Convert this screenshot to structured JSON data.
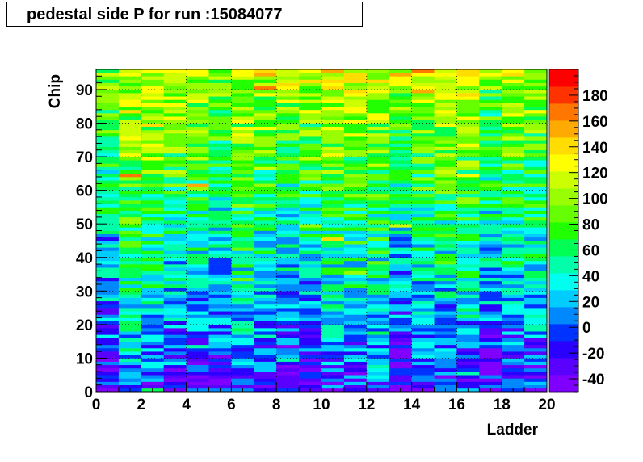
{
  "title": "pedestal side P for run :15084077",
  "chart_data": {
    "type": "heatmap",
    "title": "pedestal side P for run :15084077",
    "xlabel": "Ladder",
    "ylabel": "Chip",
    "xlim": [
      0,
      20
    ],
    "ylim": [
      0,
      96
    ],
    "x_ticks": [
      "0",
      "2",
      "4",
      "6",
      "8",
      "10",
      "12",
      "14",
      "16",
      "18",
      "20"
    ],
    "y_ticks": [
      "0",
      "10",
      "20",
      "30",
      "40",
      "50",
      "60",
      "70",
      "80",
      "90"
    ],
    "n_ladders": 20,
    "n_chips": 96,
    "zlim": [
      -50,
      200
    ],
    "z_ticks": [
      "-40",
      "-20",
      "0",
      "20",
      "40",
      "60",
      "80",
      "100",
      "120",
      "140",
      "160",
      "180"
    ],
    "palette": [
      "#7f00ff",
      "#5a00ff",
      "#2a00ff",
      "#0033ff",
      "#0088ff",
      "#00ccff",
      "#00ffee",
      "#00ffaa",
      "#00ff55",
      "#22ff00",
      "#66ff00",
      "#99ff00",
      "#ccff00",
      "#ffff00",
      "#ffdd00",
      "#ffaa00",
      "#ff7700",
      "#ff3300",
      "#ff0000"
    ],
    "grid": true,
    "legend": "right-colorbar",
    "ladder_trends": [
      {
        "ladder": 1,
        "low_chip_mean": -30,
        "high_chip_mean": 90
      },
      {
        "ladder": 2,
        "low_chip_mean": 10,
        "high_chip_mean": 110
      },
      {
        "ladder": 3,
        "low_chip_mean": -10,
        "high_chip_mean": 115
      },
      {
        "ladder": 4,
        "low_chip_mean": -30,
        "high_chip_mean": 120
      },
      {
        "ladder": 5,
        "low_chip_mean": -25,
        "high_chip_mean": 110
      },
      {
        "ladder": 6,
        "low_chip_mean": -20,
        "high_chip_mean": 95
      },
      {
        "ladder": 7,
        "low_chip_mean": 0,
        "high_chip_mean": 110
      },
      {
        "ladder": 8,
        "low_chip_mean": -25,
        "high_chip_mean": 115
      },
      {
        "ladder": 9,
        "low_chip_mean": -35,
        "high_chip_mean": 105
      },
      {
        "ladder": 10,
        "low_chip_mean": -30,
        "high_chip_mean": 110
      },
      {
        "ladder": 11,
        "low_chip_mean": -10,
        "high_chip_mean": 120
      },
      {
        "ladder": 12,
        "low_chip_mean": -15,
        "high_chip_mean": 120
      },
      {
        "ladder": 13,
        "low_chip_mean": 0,
        "high_chip_mean": 110
      },
      {
        "ladder": 14,
        "low_chip_mean": -35,
        "high_chip_mean": 100
      },
      {
        "ladder": 15,
        "low_chip_mean": -20,
        "high_chip_mean": 105
      },
      {
        "ladder": 16,
        "low_chip_mean": -20,
        "high_chip_mean": 115
      },
      {
        "ladder": 17,
        "low_chip_mean": -10,
        "high_chip_mean": 120
      },
      {
        "ladder": 18,
        "low_chip_mean": -30,
        "high_chip_mean": 90
      },
      {
        "ladder": 19,
        "low_chip_mean": -25,
        "high_chip_mean": 110
      },
      {
        "ladder": 20,
        "low_chip_mean": -20,
        "high_chip_mean": 105
      }
    ]
  }
}
